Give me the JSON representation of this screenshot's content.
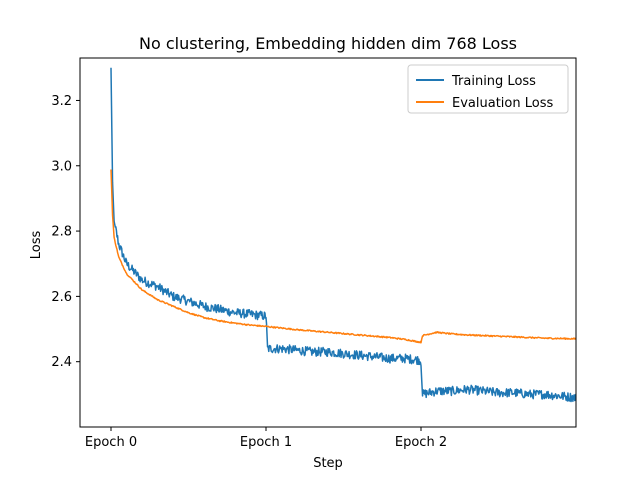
{
  "chart_data": {
    "type": "line",
    "title": "No clustering, Embedding hidden dim 768 Loss",
    "xlabel": "Step",
    "ylabel": "Loss",
    "xlim": [
      -0.2,
      3.0
    ],
    "ylim": [
      2.2,
      3.33
    ],
    "x_ticks": [
      {
        "value": 0,
        "label": "Epoch 0"
      },
      {
        "value": 1,
        "label": "Epoch 1"
      },
      {
        "value": 2,
        "label": "Epoch 2"
      }
    ],
    "y_ticks": [
      2.4,
      2.6,
      2.8,
      3.0,
      3.2
    ],
    "legend": "top-right",
    "series": [
      {
        "name": "Training Loss",
        "color": "#1f77b4",
        "x": [
          0.0,
          0.01,
          0.02,
          0.05,
          0.1,
          0.2,
          0.3,
          0.4,
          0.5,
          0.6,
          0.7,
          0.8,
          0.9,
          0.99,
          1.0,
          1.01,
          1.1,
          1.2,
          1.3,
          1.4,
          1.5,
          1.6,
          1.7,
          1.8,
          1.9,
          1.99,
          2.0,
          2.01,
          2.1,
          2.2,
          2.3,
          2.4,
          2.5,
          2.6,
          2.7,
          2.8,
          2.9,
          3.0
        ],
        "values": [
          3.3,
          2.95,
          2.83,
          2.76,
          2.7,
          2.65,
          2.63,
          2.6,
          2.585,
          2.57,
          2.56,
          2.55,
          2.545,
          2.54,
          2.54,
          2.44,
          2.44,
          2.435,
          2.43,
          2.43,
          2.425,
          2.42,
          2.415,
          2.41,
          2.41,
          2.405,
          2.4,
          2.3,
          2.31,
          2.31,
          2.315,
          2.31,
          2.305,
          2.305,
          2.3,
          2.3,
          2.295,
          2.29
        ]
      },
      {
        "name": "Evaluation Loss",
        "color": "#ff7f0e",
        "x": [
          0.0,
          0.01,
          0.02,
          0.05,
          0.1,
          0.2,
          0.3,
          0.4,
          0.5,
          0.6,
          0.7,
          0.8,
          0.9,
          1.0,
          1.1,
          1.2,
          1.3,
          1.4,
          1.5,
          1.6,
          1.7,
          1.8,
          1.9,
          1.99,
          2.0,
          2.01,
          2.1,
          2.2,
          2.3,
          2.4,
          2.5,
          2.6,
          2.7,
          2.8,
          2.9,
          3.0
        ],
        "values": [
          2.99,
          2.85,
          2.78,
          2.72,
          2.67,
          2.62,
          2.59,
          2.57,
          2.55,
          2.535,
          2.525,
          2.518,
          2.512,
          2.508,
          2.503,
          2.498,
          2.494,
          2.49,
          2.486,
          2.482,
          2.478,
          2.474,
          2.468,
          2.46,
          2.46,
          2.48,
          2.49,
          2.485,
          2.482,
          2.48,
          2.478,
          2.476,
          2.474,
          2.472,
          2.471,
          2.47
        ]
      }
    ]
  }
}
